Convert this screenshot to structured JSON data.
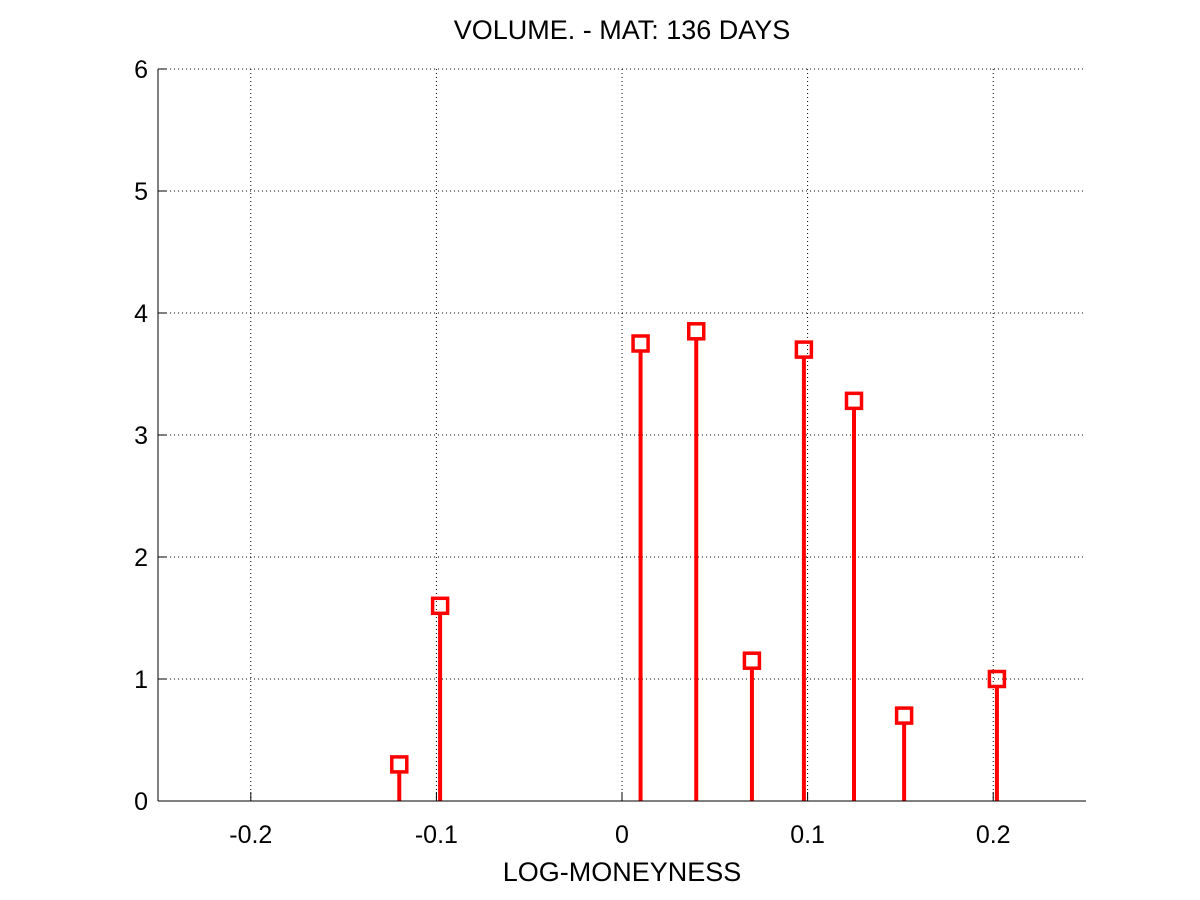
{
  "chart_data": {
    "type": "stem",
    "title": "VOLUME. - MAT: 136 DAYS",
    "xlabel": "LOG-MONEYNESS",
    "ylabel": "",
    "xlim": [
      -0.25,
      0.25
    ],
    "ylim": [
      0,
      6
    ],
    "xticks": [
      -0.2,
      -0.1,
      0,
      0.1,
      0.2
    ],
    "xtick_labels": [
      "-0.2",
      "-0.1",
      "0",
      "0.1",
      "0.2"
    ],
    "yticks": [
      0,
      1,
      2,
      3,
      4,
      5,
      6
    ],
    "ytick_labels": [
      "0",
      "1",
      "2",
      "3",
      "4",
      "5",
      "6"
    ],
    "grid": true,
    "grid_style": "dotted",
    "series": [
      {
        "color": "#ff0000",
        "marker": "square",
        "x": [
          -0.12,
          -0.098,
          0.01,
          0.04,
          0.07,
          0.098,
          0.125,
          0.152,
          0.202
        ],
        "y": [
          0.3,
          1.6,
          3.75,
          3.85,
          1.15,
          3.7,
          3.28,
          0.7,
          1.0
        ]
      }
    ]
  }
}
